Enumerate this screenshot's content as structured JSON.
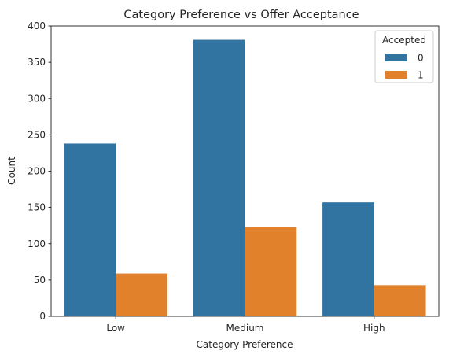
{
  "chart_data": {
    "type": "bar",
    "title": "Category Preference vs Offer Acceptance",
    "xlabel": "Category Preference",
    "ylabel": "Count",
    "categories": [
      "Low",
      "Medium",
      "High"
    ],
    "series": [
      {
        "name": "0",
        "color": "#3274a1",
        "values": [
          238,
          381,
          157
        ]
      },
      {
        "name": "1",
        "color": "#e1812c",
        "values": [
          59,
          123,
          43
        ]
      }
    ],
    "ylim": [
      0,
      400
    ],
    "yticks": [
      0,
      50,
      100,
      150,
      200,
      250,
      300,
      350,
      400
    ],
    "legend": {
      "title": "Accepted",
      "placement": "top-right"
    },
    "grid": false
  }
}
